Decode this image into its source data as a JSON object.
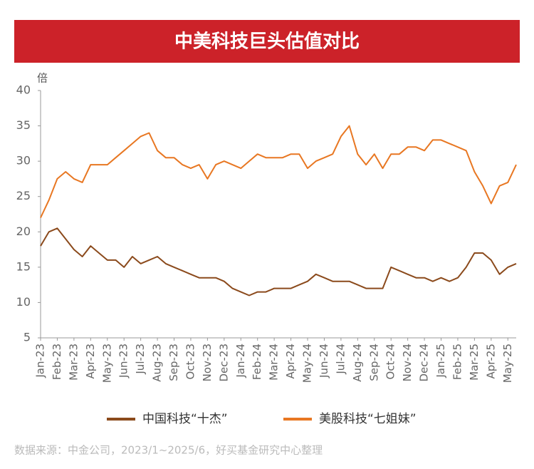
{
  "chart_data": {
    "type": "line",
    "title": "中美科技巨头估值对比",
    "y_axis_label": "倍",
    "source": "数据来源：中金公司，2023/1~2025/6，好买基金研究中心整理",
    "categories": [
      "Jan-23",
      null,
      "Feb-23",
      null,
      "Mar-23",
      null,
      "Apr-23",
      null,
      "May-23",
      null,
      "Jun-23",
      null,
      "Jul-23",
      null,
      "Aug-23",
      null,
      "Sep-23",
      null,
      "Oct-23",
      null,
      "Nov-23",
      null,
      "Dec-23",
      null,
      "Jan-24",
      null,
      "Feb-24",
      null,
      "Mar-24",
      null,
      "Apr-24",
      null,
      "May-24",
      null,
      "Jun-24",
      null,
      "Jul-24",
      null,
      "Aug-24",
      null,
      "Sep-24",
      null,
      "Oct-24",
      null,
      "Nov-24",
      null,
      "Dec-24",
      null,
      "Jan-25",
      null,
      "Feb-25",
      null,
      "Mar-25",
      null,
      "Apr-25",
      null,
      "May-25",
      null
    ],
    "series": [
      {
        "name": "中国科技“十杰”",
        "color": "#8b4a1c",
        "values": [
          18,
          20,
          20.5,
          19,
          17.5,
          16.5,
          18,
          17,
          16,
          16,
          15,
          16.5,
          15.5,
          16,
          16.5,
          15.5,
          15,
          14.5,
          14,
          13.5,
          13.5,
          13.5,
          13,
          12,
          11.5,
          11,
          11.5,
          11.5,
          12,
          12,
          12,
          12.5,
          13,
          14,
          13.5,
          13,
          13,
          13,
          12.5,
          12,
          12,
          12,
          15,
          14.5,
          14,
          13.5,
          13.5,
          13,
          13.5,
          13,
          13.5,
          15,
          17,
          17,
          16,
          14,
          15,
          15.5
        ]
      },
      {
        "name": "美股科技“七姐妹”",
        "color": "#e87722",
        "values": [
          22,
          24.5,
          27.5,
          28.5,
          27.5,
          27,
          29.5,
          29.5,
          29.5,
          30.5,
          31.5,
          32.5,
          33.5,
          34,
          31.5,
          30.5,
          30.5,
          29.5,
          29,
          29.5,
          27.5,
          29.5,
          30,
          29.5,
          29,
          30,
          31,
          30.5,
          30.5,
          30.5,
          31,
          31,
          29,
          30,
          30.5,
          31,
          33.5,
          35,
          31,
          29.5,
          31,
          29,
          31,
          31,
          32,
          32,
          31.5,
          33,
          33,
          32.5,
          32,
          31.5,
          28.5,
          26.5,
          24,
          26.5,
          27,
          29.5
        ]
      }
    ],
    "ylim": [
      5,
      40
    ],
    "yticks": [
      5,
      10,
      15,
      20,
      25,
      30,
      35,
      40
    ],
    "grid": false
  }
}
